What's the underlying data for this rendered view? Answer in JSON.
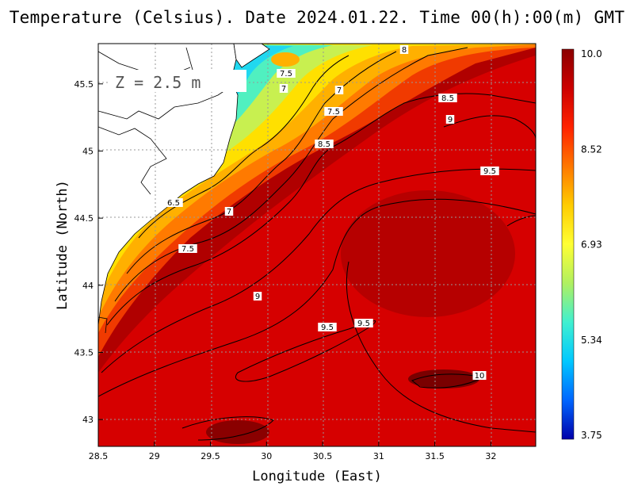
{
  "title": "Temperature (Celsius). Date 2024.01.22. Time 00(h):00(m) GMT",
  "depth_label": "Z = 2.5 m",
  "x_axis": {
    "title": "Longitude (East)",
    "range": [
      28.5,
      32.4
    ],
    "ticks": [
      "28.5",
      "29",
      "29.5",
      "30",
      "30.5",
      "31",
      "31.5",
      "32"
    ]
  },
  "y_axis": {
    "title": "Latitude (North)",
    "range": [
      42.8,
      45.8
    ],
    "ticks": [
      "43",
      "43.5",
      "44",
      "44.5",
      "45",
      "45.5"
    ]
  },
  "colorbar": {
    "min": 3.75,
    "max": 10.0,
    "labels": [
      "10.0",
      "8.52",
      "6.93",
      "5.34",
      "3.75"
    ],
    "colors": [
      "#8b0000",
      "#cc0000",
      "#ff2200",
      "#ff7700",
      "#ffcc00",
      "#ffff33",
      "#b0f060",
      "#40f0d0",
      "#00c8ff",
      "#0066ff",
      "#0000aa"
    ]
  },
  "contour_labels": [
    "8",
    "7.5",
    "7",
    "7",
    "7.5",
    "8.5",
    "8.5",
    "9",
    "9.5",
    "6.5",
    "7",
    "7.5",
    "9",
    "9.5",
    "9.5",
    "10"
  ],
  "grid": "dotted"
}
